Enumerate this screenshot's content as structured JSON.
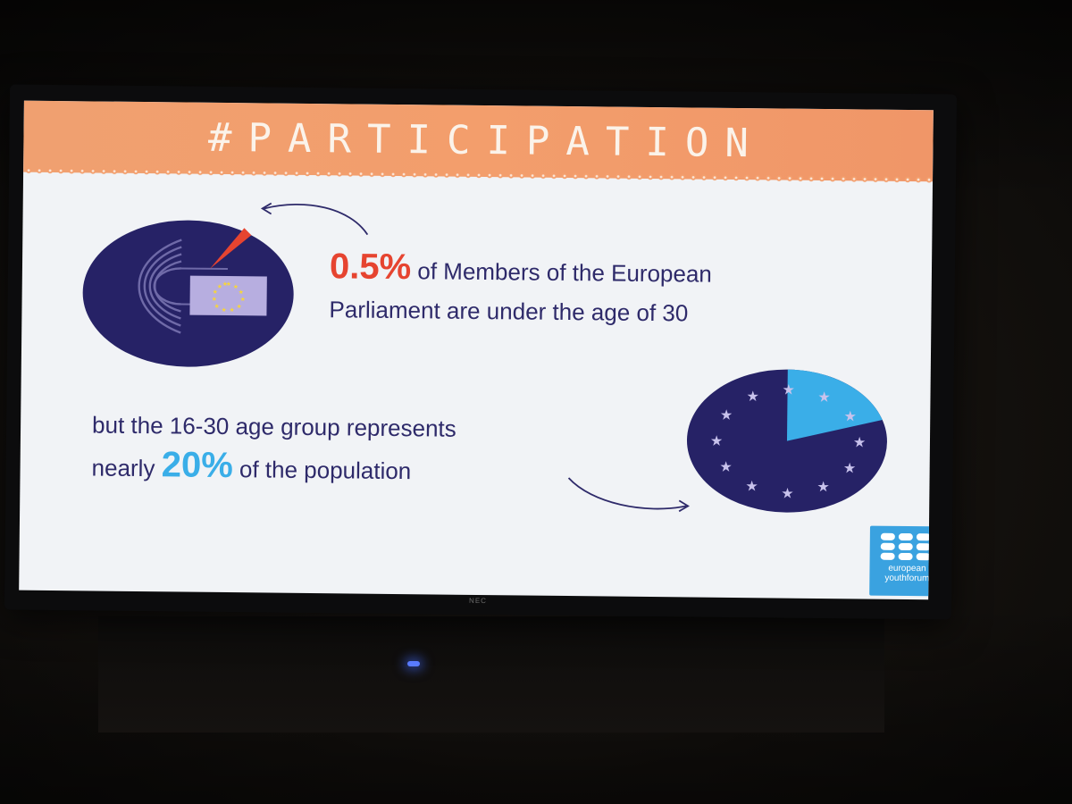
{
  "slide": {
    "title": "#PARTICIPATION",
    "stat1_value": "0.5%",
    "stat1_line1": "of Members of the European",
    "stat1_line2": "Parliament are under the age of 30",
    "stat2_line1": "but the 16-30 age group represents",
    "stat2_prefix": "nearly",
    "stat2_value": "20%",
    "stat2_suffix": "of the population",
    "logo_line1": "european",
    "logo_line2": "youthforum"
  },
  "monitor": {
    "brand": "NEC"
  },
  "colors": {
    "banner": "#f39e6c",
    "navy": "#2e2a6a",
    "red_accent": "#e64430",
    "blue_accent": "#3aaee8",
    "pie_navy": "#262266",
    "pie_slice": "#3aaee8"
  },
  "pie": {
    "highlighted_share_percent": 20
  }
}
